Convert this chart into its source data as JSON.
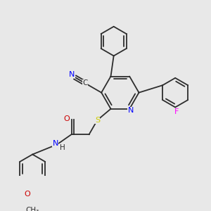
{
  "background_color": "#e8e8e8",
  "bond_color": "#2d2d2d",
  "atom_colors": {
    "N": "#0000ff",
    "O": "#cc0000",
    "S": "#cccc00",
    "F": "#ff00ff",
    "C": "#2d2d2d",
    "H": "#2d2d2d"
  }
}
